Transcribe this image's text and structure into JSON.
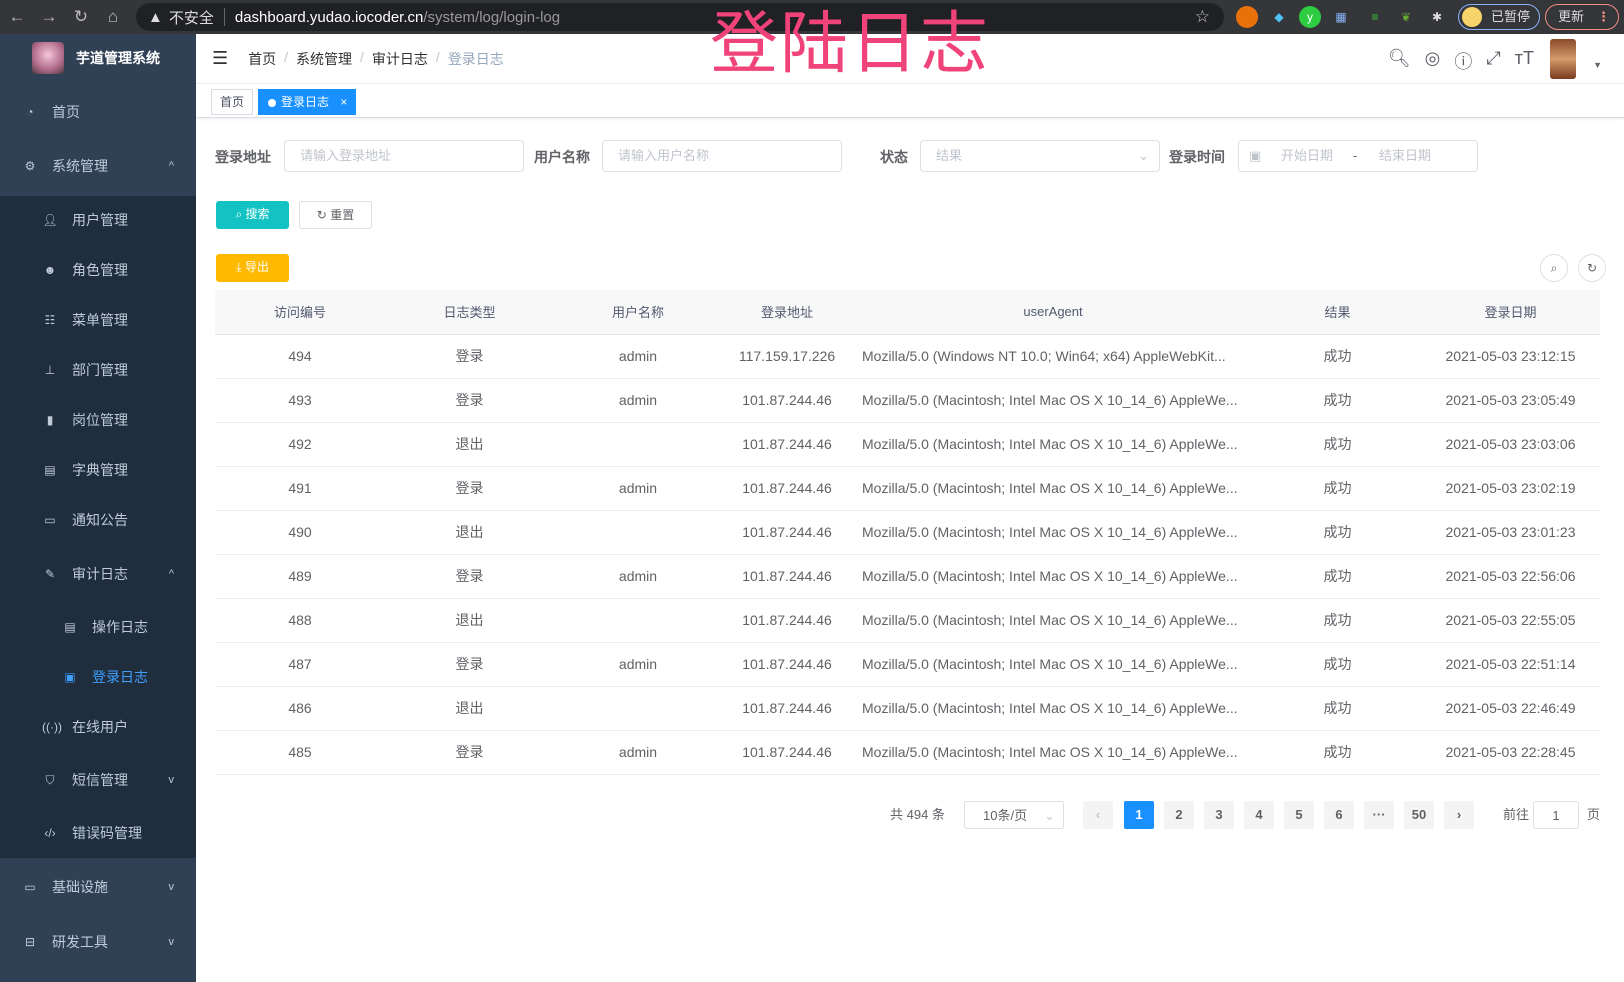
{
  "browser": {
    "not_secure": "不安全",
    "url_host": "dashboard.yudao.iocoder.cn",
    "url_path": "/system/log/login-log",
    "profile_label": "已暂停",
    "update_label": "更新"
  },
  "watermark": "登陆日志",
  "sidebar": {
    "title": "芋道管理系统",
    "items": [
      {
        "label": "首页",
        "icon": "dashboard-icon"
      },
      {
        "label": "系统管理",
        "icon": "gear-icon",
        "expanded": true
      },
      {
        "label": "用户管理",
        "icon": "user-icon"
      },
      {
        "label": "角色管理",
        "icon": "role-icon"
      },
      {
        "label": "菜单管理",
        "icon": "tree-table-icon"
      },
      {
        "label": "部门管理",
        "icon": "org-tree-icon"
      },
      {
        "label": "岗位管理",
        "icon": "post-icon"
      },
      {
        "label": "字典管理",
        "icon": "dict-icon"
      },
      {
        "label": "通知公告",
        "icon": "message-icon"
      },
      {
        "label": "审计日志",
        "icon": "log-icon",
        "expanded": true
      },
      {
        "label": "操作日志",
        "icon": "form-icon"
      },
      {
        "label": "登录日志",
        "icon": "login-info-icon",
        "active": true
      },
      {
        "label": "在线用户",
        "icon": "online-icon"
      },
      {
        "label": "短信管理",
        "icon": "shield-icon"
      },
      {
        "label": "错误码管理",
        "icon": "code-icon"
      },
      {
        "label": "基础设施",
        "icon": "monitor-icon"
      },
      {
        "label": "研发工具",
        "icon": "tool-icon"
      }
    ]
  },
  "breadcrumb": [
    "首页",
    "系统管理",
    "审计日志",
    "登录日志"
  ],
  "tags": [
    {
      "label": "首页"
    },
    {
      "label": "登录日志",
      "close": "×"
    }
  ],
  "filters": {
    "address_label": "登录地址",
    "address_placeholder": "请输入登录地址",
    "username_label": "用户名称",
    "username_placeholder": "请输入用户名称",
    "status_label": "状态",
    "status_placeholder": "结果",
    "time_label": "登录时间",
    "start_placeholder": "开始日期",
    "range_sep": "-",
    "end_placeholder": "结束日期"
  },
  "actions": {
    "search": "搜索",
    "reset": "重置",
    "export": "导出"
  },
  "colors": {
    "sidebar": "#304156",
    "submenu": "#1f2d3d",
    "primary": "#1890ff",
    "search": "#13c2c2",
    "export": "#ffba00"
  },
  "table": {
    "columns": [
      "访问编号",
      "日志类型",
      "用户名称",
      "登录地址",
      "userAgent",
      "结果",
      "登录日期"
    ],
    "rows": [
      [
        "494",
        "登录",
        "admin",
        "117.159.17.226",
        "Mozilla/5.0 (Windows NT 10.0; Win64; x64) AppleWebKit...",
        "成功",
        "2021-05-03 23:12:15"
      ],
      [
        "493",
        "登录",
        "admin",
        "101.87.244.46",
        "Mozilla/5.0 (Macintosh; Intel Mac OS X 10_14_6) AppleWe...",
        "成功",
        "2021-05-03 23:05:49"
      ],
      [
        "492",
        "退出",
        "",
        "101.87.244.46",
        "Mozilla/5.0 (Macintosh; Intel Mac OS X 10_14_6) AppleWe...",
        "成功",
        "2021-05-03 23:03:06"
      ],
      [
        "491",
        "登录",
        "admin",
        "101.87.244.46",
        "Mozilla/5.0 (Macintosh; Intel Mac OS X 10_14_6) AppleWe...",
        "成功",
        "2021-05-03 23:02:19"
      ],
      [
        "490",
        "退出",
        "",
        "101.87.244.46",
        "Mozilla/5.0 (Macintosh; Intel Mac OS X 10_14_6) AppleWe...",
        "成功",
        "2021-05-03 23:01:23"
      ],
      [
        "489",
        "登录",
        "admin",
        "101.87.244.46",
        "Mozilla/5.0 (Macintosh; Intel Mac OS X 10_14_6) AppleWe...",
        "成功",
        "2021-05-03 22:56:06"
      ],
      [
        "488",
        "退出",
        "",
        "101.87.244.46",
        "Mozilla/5.0 (Macintosh; Intel Mac OS X 10_14_6) AppleWe...",
        "成功",
        "2021-05-03 22:55:05"
      ],
      [
        "487",
        "登录",
        "admin",
        "101.87.244.46",
        "Mozilla/5.0 (Macintosh; Intel Mac OS X 10_14_6) AppleWe...",
        "成功",
        "2021-05-03 22:51:14"
      ],
      [
        "486",
        "退出",
        "",
        "101.87.244.46",
        "Mozilla/5.0 (Macintosh; Intel Mac OS X 10_14_6) AppleWe...",
        "成功",
        "2021-05-03 22:46:49"
      ],
      [
        "485",
        "登录",
        "admin",
        "101.87.244.46",
        "Mozilla/5.0 (Macintosh; Intel Mac OS X 10_14_6) AppleWe...",
        "成功",
        "2021-05-03 22:28:45"
      ]
    ]
  },
  "pagination": {
    "total": "共 494 条",
    "page_size": "10条/页",
    "pages": [
      "1",
      "2",
      "3",
      "4",
      "5",
      "6",
      "···",
      "50"
    ],
    "current": "1",
    "goto_label": "前往",
    "goto_value": "1",
    "page_suffix": "页"
  }
}
